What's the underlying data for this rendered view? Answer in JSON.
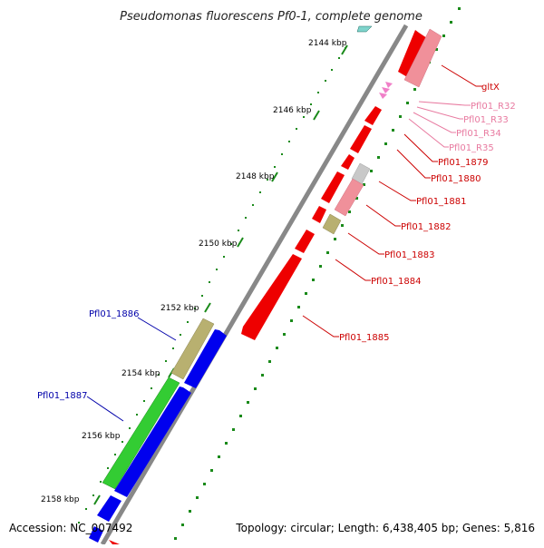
{
  "map": {
    "title": "Pseudomonas fluorescens Pf0-1, complete genome",
    "accession": "Accession: NC_007492",
    "summary": "Topology: circular; Length: 6,438,405 bp; Genes: 5,816"
  },
  "ticks": [
    "2144 kbp",
    "2146 kbp",
    "2148 kbp",
    "2150 kbp",
    "2152 kbp",
    "2154 kbp",
    "2156 kbp",
    "2158 kbp"
  ],
  "genes": [
    {
      "label": "gltX",
      "color": "#cc0000"
    },
    {
      "label": "Pfl01_R32",
      "color": "#e87aa0"
    },
    {
      "label": "Pfl01_R33",
      "color": "#e87aa0"
    },
    {
      "label": "Pfl01_R34",
      "color": "#e87aa0"
    },
    {
      "label": "Pfl01_R35",
      "color": "#e87aa0"
    },
    {
      "label": "Pfl01_1879",
      "color": "#cc0000"
    },
    {
      "label": "Pfl01_1880",
      "color": "#cc0000"
    },
    {
      "label": "Pfl01_1881",
      "color": "#cc0000"
    },
    {
      "label": "Pfl01_1882",
      "color": "#cc0000"
    },
    {
      "label": "Pfl01_1883",
      "color": "#cc0000"
    },
    {
      "label": "Pfl01_1884",
      "color": "#cc0000"
    },
    {
      "label": "Pfl01_1885",
      "color": "#cc0000"
    },
    {
      "label": "Pfl01_1886",
      "color": "#0000aa"
    },
    {
      "label": "Pfl01_1887",
      "color": "#0000aa"
    }
  ],
  "colors": {
    "backbone": "#888888",
    "forward_cds": "#ee0000",
    "forward_rna": "#f0909a",
    "forward_trna": "#f080c8",
    "reverse_cds": "#0000ee",
    "reverse_green": "#33cc33",
    "olive": "#b8b070",
    "gray_feature": "#c8c8c8",
    "gc_dots": "#1a8a1a"
  }
}
